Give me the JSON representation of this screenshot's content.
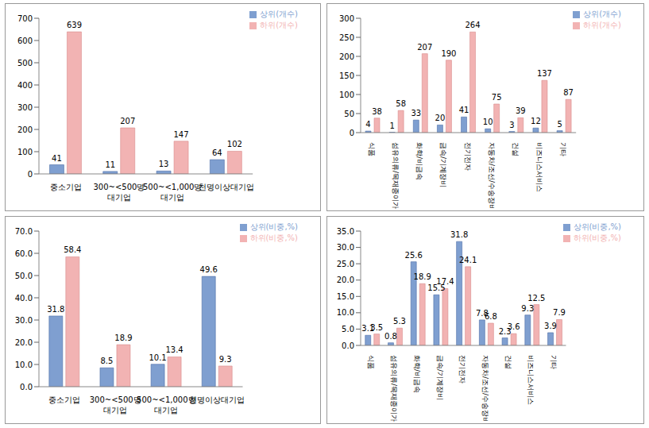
{
  "chart_data": [
    {
      "type": "bar",
      "categories": [
        "중소기업",
        "300~<500명 대기업",
        "500~<1,000명 대기업",
        "천명이상대기업"
      ],
      "series": [
        {
          "name": "상위(개수)",
          "color": "#7f9fd0",
          "values": [
            41,
            11,
            13,
            64
          ]
        },
        {
          "name": "하위(개수)",
          "color": "#f2b3b3",
          "values": [
            639,
            207,
            147,
            102
          ]
        }
      ],
      "ylim": [
        0,
        700
      ],
      "yticks": [
        0,
        100,
        200,
        300,
        400,
        500,
        600,
        700
      ],
      "data_labels": true,
      "legend": "upper right",
      "grid": false
    },
    {
      "type": "bar",
      "categories": [
        "식품",
        "섬유의류/목재종이가구",
        "화학/비금속",
        "금속/기계장비",
        "전기전자",
        "자동차/조선/수송장비",
        "건설",
        "비즈니스서비스",
        "기타"
      ],
      "series": [
        {
          "name": "상위(개수)",
          "color": "#7f9fd0",
          "values": [
            4,
            1,
            33,
            20,
            41,
            10,
            3,
            12,
            5
          ]
        },
        {
          "name": "하위(개수)",
          "color": "#f2b3b3",
          "values": [
            38,
            58,
            207,
            190,
            264,
            75,
            39,
            137,
            87
          ]
        }
      ],
      "ylim": [
        0,
        300
      ],
      "yticks": [
        0,
        50,
        100,
        150,
        200,
        250,
        300
      ],
      "data_labels": true,
      "legend": "upper right",
      "grid": false
    },
    {
      "type": "bar",
      "categories": [
        "중소기업",
        "300~<500명 대기업",
        "500~<1,000명 대기업",
        "천명이상대기업"
      ],
      "series": [
        {
          "name": "상위(비중,%)",
          "color": "#7f9fd0",
          "values": [
            31.8,
            8.5,
            10.1,
            49.6
          ]
        },
        {
          "name": "하위(비중,%)",
          "color": "#f2b3b3",
          "values": [
            58.4,
            18.9,
            13.4,
            9.3
          ]
        }
      ],
      "ylim": [
        0,
        70
      ],
      "yticks": [
        {
          "value": 0,
          "label": "0.0"
        },
        {
          "value": 10,
          "label": "10.0"
        },
        {
          "value": 20,
          "label": "20.0"
        },
        {
          "value": 30,
          "label": "30.0"
        },
        {
          "value": 40,
          "label": "40.0"
        },
        {
          "value": 50,
          "label": "50.0"
        },
        {
          "value": 60,
          "label": "60.0"
        },
        {
          "value": 70,
          "label": "70.0"
        }
      ],
      "data_labels": true,
      "legend": "upper right",
      "grid": false
    },
    {
      "type": "bar",
      "categories": [
        "식품",
        "섬유의류/목재종이가구",
        "화학/비금속",
        "금속/기계장비",
        "전기전자",
        "자동차/조선/수송장비",
        "건설",
        "비즈니스서비스",
        "기타"
      ],
      "series": [
        {
          "name": "상위(비중,%)",
          "color": "#7f9fd0",
          "values": [
            3.1,
            0.8,
            25.6,
            15.5,
            31.8,
            7.8,
            2.3,
            9.3,
            3.9
          ]
        },
        {
          "name": "하위(비중,%)",
          "color": "#f2b3b3",
          "values": [
            3.5,
            5.3,
            18.9,
            17.4,
            24.1,
            6.8,
            3.6,
            12.5,
            7.9
          ]
        }
      ],
      "ylim": [
        0,
        35
      ],
      "yticks": [
        {
          "value": 0,
          "label": "0.0"
        },
        {
          "value": 5,
          "label": "5.0"
        },
        {
          "value": 10,
          "label": "10.0"
        },
        {
          "value": 15,
          "label": "15.0"
        },
        {
          "value": 20,
          "label": "20.0"
        },
        {
          "value": 25,
          "label": "25.0"
        },
        {
          "value": 30,
          "label": "30.0"
        },
        {
          "value": 35,
          "label": "35.0"
        }
      ],
      "data_labels": true,
      "legend": "upper right",
      "grid": false
    }
  ]
}
